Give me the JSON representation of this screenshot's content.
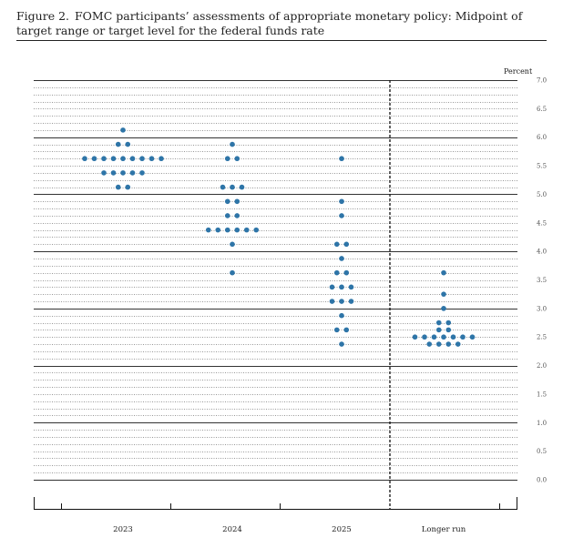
{
  "figure": {
    "number": "Figure 2.",
    "title": "FOMC participants’ assessments of appropriate monetary policy: Midpoint of target range or target level for the federal funds rate"
  },
  "chart_data": {
    "type": "scatter",
    "ylabel": "Percent",
    "ylim": [
      0,
      7
    ],
    "yticks": [
      "0.0",
      "0.5",
      "1.0",
      "1.5",
      "2.0",
      "2.5",
      "3.0",
      "3.5",
      "4.0",
      "4.5",
      "5.0",
      "5.5",
      "6.0",
      "6.5",
      "7.0"
    ],
    "categories": [
      "2023",
      "2024",
      "2025",
      "Longer run"
    ],
    "dot_color": "#2E75A8",
    "series": [
      {
        "values": [
          {
            "y": 6.125,
            "count": 1
          },
          {
            "y": 5.875,
            "count": 2
          },
          {
            "y": 5.625,
            "count": 9
          },
          {
            "y": 5.375,
            "count": 5
          },
          {
            "y": 5.125,
            "count": 2
          }
        ]
      },
      {
        "values": [
          {
            "y": 5.875,
            "count": 1
          },
          {
            "y": 5.625,
            "count": 2
          },
          {
            "y": 5.125,
            "count": 3
          },
          {
            "y": 4.875,
            "count": 2
          },
          {
            "y": 4.625,
            "count": 2
          },
          {
            "y": 4.375,
            "count": 6
          },
          {
            "y": 4.125,
            "count": 1
          },
          {
            "y": 3.625,
            "count": 1
          }
        ]
      },
      {
        "values": [
          {
            "y": 5.625,
            "count": 1
          },
          {
            "y": 4.875,
            "count": 1
          },
          {
            "y": 4.625,
            "count": 1
          },
          {
            "y": 4.125,
            "count": 2
          },
          {
            "y": 3.875,
            "count": 1
          },
          {
            "y": 3.625,
            "count": 2
          },
          {
            "y": 3.375,
            "count": 3
          },
          {
            "y": 3.125,
            "count": 3
          },
          {
            "y": 2.875,
            "count": 1
          },
          {
            "y": 2.625,
            "count": 2
          },
          {
            "y": 2.375,
            "count": 1
          }
        ]
      },
      {
        "values": [
          {
            "y": 3.625,
            "count": 1
          },
          {
            "y": 3.25,
            "count": 1
          },
          {
            "y": 3.0,
            "count": 1
          },
          {
            "y": 2.75,
            "count": 2
          },
          {
            "y": 2.625,
            "count": 2
          },
          {
            "y": 2.5,
            "count": 7
          },
          {
            "y": 2.375,
            "count": 4
          }
        ]
      }
    ],
    "grid": true,
    "divider_before": "Longer run"
  }
}
